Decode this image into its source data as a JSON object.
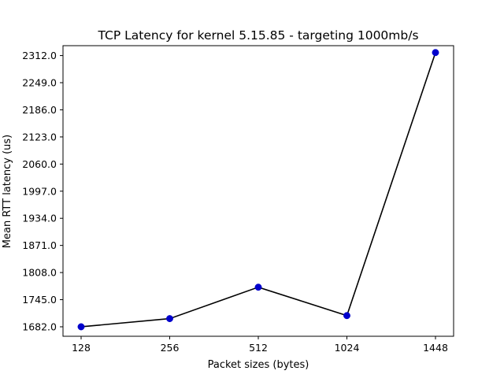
{
  "chart_data": {
    "type": "line",
    "title": "TCP Latency for kernel 5.15.85 - targeting 1000mb/s",
    "xlabel": "Packet sizes (bytes)",
    "ylabel": "Mean RTT latency (us)",
    "categories": [
      "128",
      "256",
      "512",
      "1024",
      "1448"
    ],
    "series": [
      {
        "name": "Mean RTT latency",
        "values": [
          1682.0,
          1701.0,
          1774.0,
          1708.0,
          2319.0
        ]
      }
    ],
    "yticks": [
      "1682.0",
      "1745.0",
      "1808.0",
      "1871.0",
      "1934.0",
      "1997.0",
      "2060.0",
      "2123.0",
      "2186.0",
      "2249.0",
      "2312.0"
    ],
    "ylim": [
      1660.0,
      2335.0
    ],
    "grid": false,
    "line_color": "#000000",
    "marker_color": "#0000cc"
  }
}
